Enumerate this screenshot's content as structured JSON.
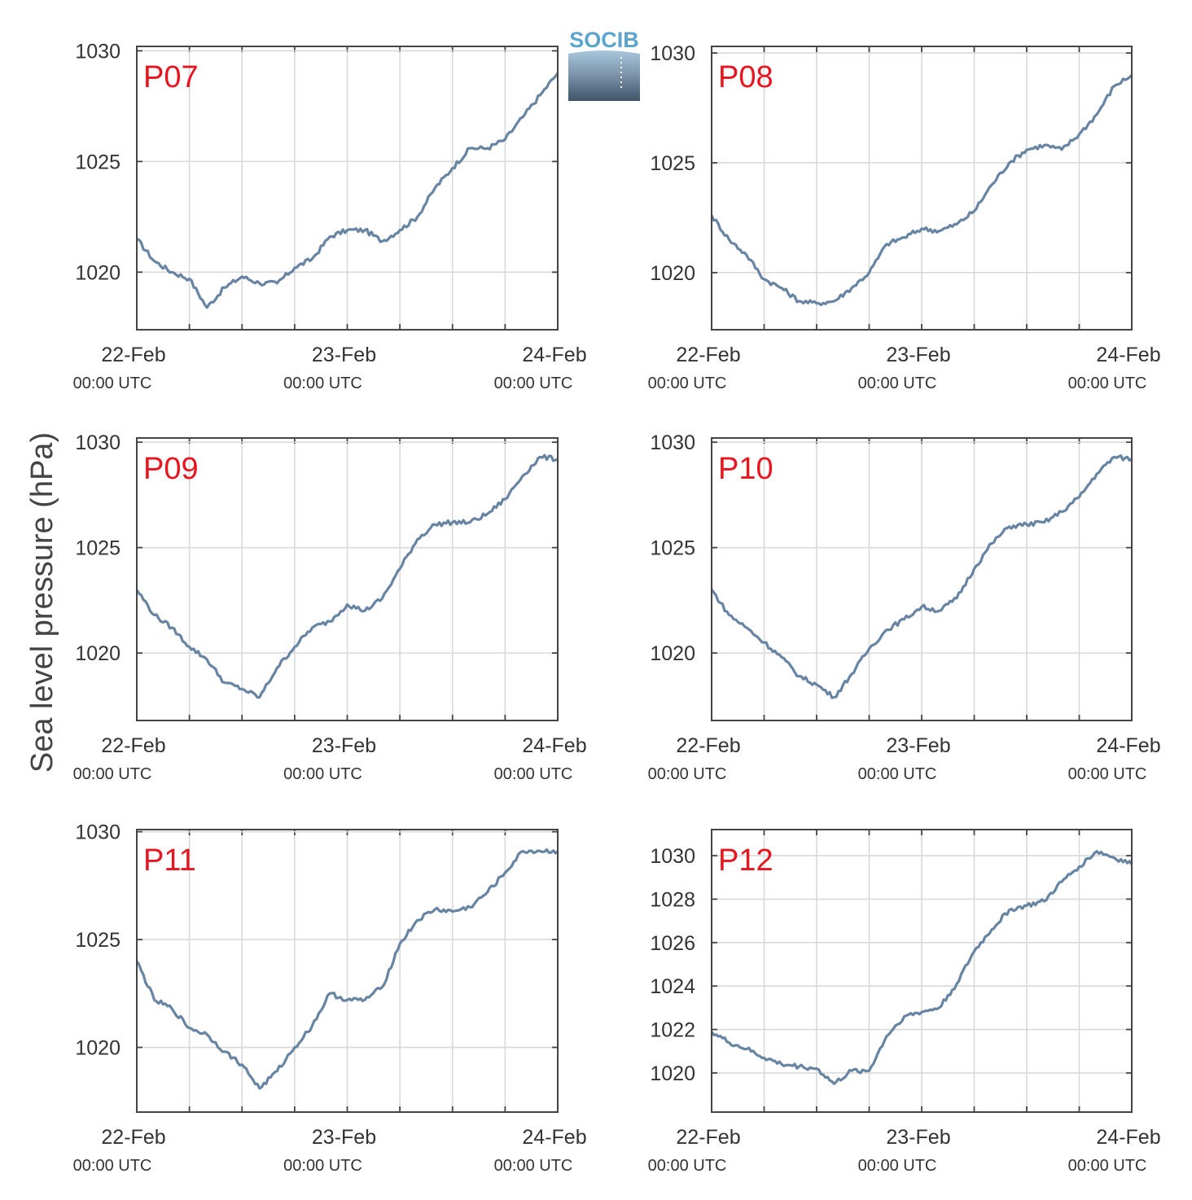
{
  "figure": {
    "ylabel": "Sea level pressure (hPa)",
    "logo_text": "SOCIB"
  },
  "colors": {
    "series": "#6784a3",
    "title": "#e8141f",
    "grid": "#d9d9d9",
    "axis": "#444444",
    "logo_top": "#5ba4cc",
    "logo_bottom": "#3f5469"
  },
  "chart_data": [
    {
      "type": "line",
      "title": "P07",
      "xlabel": "",
      "ylabel": "Sea level pressure (hPa)",
      "x_range": [
        "2014-02-22T00:00",
        "2014-02-24T00:00"
      ],
      "xticks": [
        {
          "major": "22-Feb",
          "minor": "00:00 UTC"
        },
        {
          "major": "23-Feb",
          "minor": "00:00 UTC"
        },
        {
          "major": "24-Feb",
          "minor": "00:00 UTC"
        }
      ],
      "ylim": [
        1017.4,
        1030.2
      ],
      "yticks": [
        1020,
        1025,
        1030
      ],
      "grid": true,
      "series": [
        {
          "x_hours": [
            0,
            2,
            4,
            6,
            8,
            10,
            12,
            14,
            16,
            18,
            20,
            22,
            24,
            26,
            28,
            30,
            32,
            34,
            36,
            38,
            40,
            42,
            44,
            46,
            48
          ],
          "values": [
            1021.5,
            1020.5,
            1020.0,
            1019.7,
            1018.4,
            1019.3,
            1019.8,
            1019.5,
            1019.5,
            1020.2,
            1020.6,
            1021.6,
            1021.9,
            1021.9,
            1021.4,
            1021.9,
            1022.5,
            1023.8,
            1024.7,
            1025.6,
            1025.6,
            1026.0,
            1027.0,
            1028.0,
            1029.0
          ]
        }
      ]
    },
    {
      "type": "line",
      "title": "P08",
      "xlabel": "",
      "ylabel": "Sea level pressure (hPa)",
      "x_range": [
        "2014-02-22T00:00",
        "2014-02-24T00:00"
      ],
      "xticks": [
        {
          "major": "22-Feb",
          "minor": "00:00 UTC"
        },
        {
          "major": "23-Feb",
          "minor": "00:00 UTC"
        },
        {
          "major": "24-Feb",
          "minor": "00:00 UTC"
        }
      ],
      "ylim": [
        1017.4,
        1030.3
      ],
      "yticks": [
        1020,
        1025,
        1030
      ],
      "grid": true,
      "series": [
        {
          "x_hours": [
            0,
            2,
            4,
            6,
            8,
            10,
            12,
            14,
            16,
            18,
            20,
            22,
            24,
            26,
            28,
            30,
            32,
            34,
            36,
            38,
            40,
            42,
            44,
            46,
            48
          ],
          "values": [
            1022.6,
            1021.5,
            1020.8,
            1019.7,
            1019.3,
            1018.7,
            1018.6,
            1018.7,
            1019.3,
            1020.0,
            1021.3,
            1021.6,
            1022.0,
            1021.9,
            1022.2,
            1022.8,
            1024.0,
            1025.0,
            1025.6,
            1025.8,
            1025.6,
            1026.3,
            1027.2,
            1028.5,
            1029.0
          ]
        }
      ]
    },
    {
      "type": "line",
      "title": "P09",
      "xlabel": "",
      "ylabel": "Sea level pressure (hPa)",
      "x_range": [
        "2014-02-22T00:00",
        "2014-02-24T00:00"
      ],
      "xticks": [
        {
          "major": "22-Feb",
          "minor": "00:00 UTC"
        },
        {
          "major": "23-Feb",
          "minor": "00:00 UTC"
        },
        {
          "major": "24-Feb",
          "minor": "00:00 UTC"
        }
      ],
      "ylim": [
        1016.8,
        1030.2
      ],
      "yticks": [
        1020,
        1025,
        1030
      ],
      "grid": true,
      "series": [
        {
          "x_hours": [
            0,
            2,
            4,
            6,
            8,
            10,
            12,
            14,
            16,
            18,
            20,
            22,
            24,
            26,
            28,
            30,
            32,
            34,
            36,
            38,
            40,
            42,
            44,
            46,
            48
          ],
          "values": [
            1023.0,
            1021.8,
            1021.2,
            1020.3,
            1019.7,
            1018.6,
            1018.3,
            1017.9,
            1019.3,
            1020.3,
            1021.2,
            1021.5,
            1022.3,
            1022.0,
            1022.6,
            1024.0,
            1025.4,
            1026.1,
            1026.2,
            1026.2,
            1026.6,
            1027.3,
            1028.4,
            1029.3,
            1029.2
          ]
        }
      ]
    },
    {
      "type": "line",
      "title": "P10",
      "xlabel": "",
      "ylabel": "Sea level pressure (hPa)",
      "x_range": [
        "2014-02-22T00:00",
        "2014-02-24T00:00"
      ],
      "xticks": [
        {
          "major": "22-Feb",
          "minor": "00:00 UTC"
        },
        {
          "major": "23-Feb",
          "minor": "00:00 UTC"
        },
        {
          "major": "24-Feb",
          "minor": "00:00 UTC"
        }
      ],
      "ylim": [
        1016.8,
        1030.2
      ],
      "yticks": [
        1020,
        1025,
        1030
      ],
      "grid": true,
      "series": [
        {
          "x_hours": [
            0,
            2,
            4,
            6,
            8,
            10,
            12,
            14,
            16,
            18,
            20,
            22,
            24,
            26,
            28,
            30,
            32,
            34,
            36,
            38,
            40,
            42,
            44,
            46,
            48
          ],
          "values": [
            1023.0,
            1021.8,
            1021.2,
            1020.5,
            1019.8,
            1018.9,
            1018.5,
            1017.9,
            1019.0,
            1020.2,
            1021.1,
            1021.6,
            1022.2,
            1022.0,
            1022.6,
            1024.0,
            1025.2,
            1026.0,
            1026.1,
            1026.2,
            1026.7,
            1027.4,
            1028.5,
            1029.3,
            1029.2
          ]
        }
      ]
    },
    {
      "type": "line",
      "title": "P11",
      "xlabel": "",
      "ylabel": "Sea level pressure (hPa)",
      "x_range": [
        "2014-02-22T00:00",
        "2014-02-24T00:00"
      ],
      "xticks": [
        {
          "major": "22-Feb",
          "minor": "00:00 UTC"
        },
        {
          "major": "23-Feb",
          "minor": "00:00 UTC"
        },
        {
          "major": "24-Feb",
          "minor": "00:00 UTC"
        }
      ],
      "ylim": [
        1017.0,
        1030.1
      ],
      "yticks": [
        1020,
        1025,
        1030
      ],
      "grid": true,
      "series": [
        {
          "x_hours": [
            0,
            2,
            4,
            6,
            8,
            10,
            12,
            14,
            16,
            18,
            20,
            22,
            24,
            26,
            28,
            30,
            32,
            34,
            36,
            38,
            40,
            42,
            44,
            46,
            48
          ],
          "values": [
            1024.0,
            1022.2,
            1021.8,
            1020.9,
            1020.6,
            1019.8,
            1019.2,
            1018.1,
            1018.9,
            1020.0,
            1021.0,
            1022.5,
            1022.2,
            1022.2,
            1022.8,
            1024.8,
            1025.9,
            1026.4,
            1026.3,
            1026.5,
            1027.2,
            1028.1,
            1029.1,
            1029.1,
            1029.1
          ]
        }
      ]
    },
    {
      "type": "line",
      "title": "P12",
      "xlabel": "",
      "ylabel": "Sea level pressure (hPa)",
      "x_range": [
        "2014-02-22T00:00",
        "2014-02-24T00:00"
      ],
      "xticks": [
        {
          "major": "22-Feb",
          "minor": "00:00 UTC"
        },
        {
          "major": "23-Feb",
          "minor": "00:00 UTC"
        },
        {
          "major": "24-Feb",
          "minor": "00:00 UTC"
        }
      ],
      "ylim": [
        1018.2,
        1031.2
      ],
      "yticks": [
        1020,
        1022,
        1024,
        1026,
        1028,
        1030
      ],
      "grid": true,
      "series": [
        {
          "x_hours": [
            0,
            2,
            4,
            6,
            8,
            10,
            12,
            14,
            16,
            18,
            20,
            22,
            24,
            26,
            28,
            30,
            32,
            34,
            36,
            38,
            40,
            42,
            44,
            46,
            48
          ],
          "values": [
            1021.9,
            1021.4,
            1021.1,
            1020.7,
            1020.4,
            1020.3,
            1020.2,
            1019.5,
            1020.1,
            1020.1,
            1021.7,
            1022.6,
            1022.8,
            1023.0,
            1024.1,
            1025.6,
            1026.6,
            1027.5,
            1027.7,
            1027.9,
            1028.8,
            1029.5,
            1030.2,
            1029.9,
            1029.6
          ]
        }
      ]
    }
  ]
}
